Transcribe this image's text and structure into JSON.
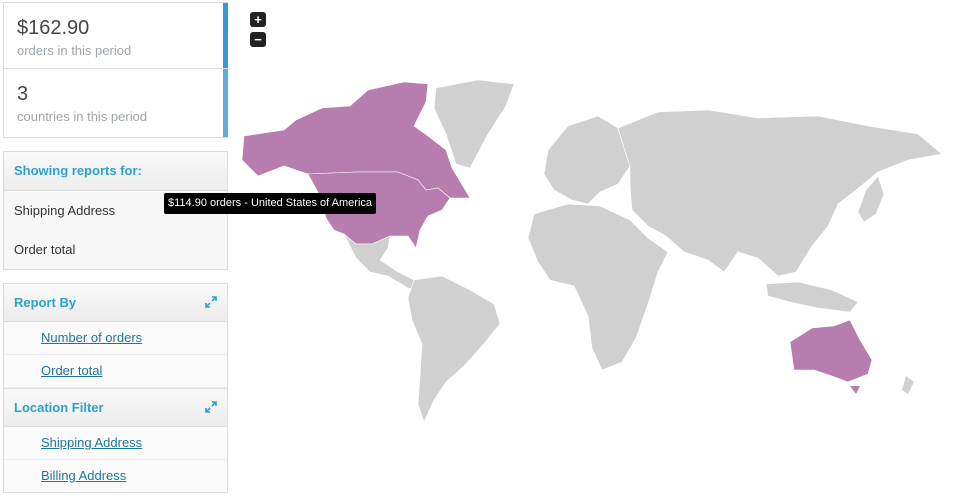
{
  "stats": [
    {
      "amount": "$162.90",
      "label": "orders in this period",
      "color": "#3498db"
    },
    {
      "amount": "3",
      "label": "countries in this period",
      "color": "#5dade2"
    }
  ],
  "showing": {
    "title": "Showing reports for:",
    "items": [
      "Shipping Address",
      "Order total"
    ]
  },
  "report_by": {
    "title": "Report By",
    "links": [
      "Number of orders",
      "Order total"
    ]
  },
  "location_filter": {
    "title": "Location Filter",
    "links": [
      "Shipping Address",
      "Billing Address"
    ]
  },
  "map": {
    "zoom_in": "+",
    "zoom_out": "−",
    "tooltip": "$114.90 orders - United States of America",
    "highlight_color": "#b77daf",
    "base_color": "#d0d0d0",
    "highlighted_regions": [
      "United States of America",
      "Canada",
      "Australia"
    ]
  }
}
